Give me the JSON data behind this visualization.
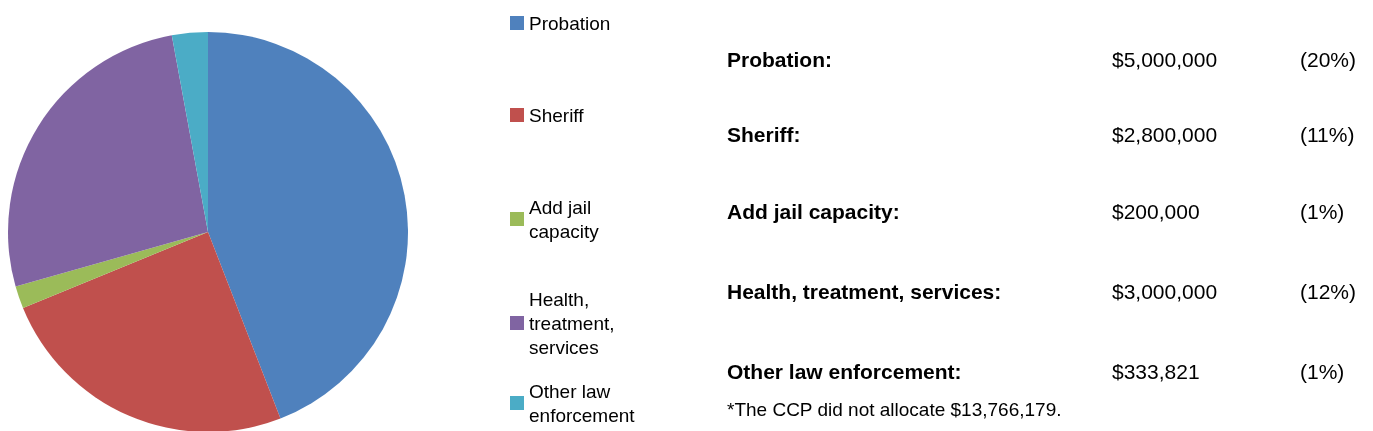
{
  "chart_data": [
    {
      "type": "pie",
      "categories": [
        "Probation",
        "Sheriff",
        "Add jail capacity",
        "Health, treatment, services",
        "Other law enforcement"
      ],
      "values": [
        44.1,
        24.7,
        1.8,
        26.5,
        2.9
      ],
      "colors": [
        "#4f81bd",
        "#c0504d",
        "#9bbb59",
        "#8064a2",
        "#4bacc6"
      ],
      "legend": "right"
    },
    {
      "type": "other",
      "annotations": [
        "Probation:",
        "$5,000,000",
        "(20%)",
        "Sheriff:",
        "$2,800,000",
        "(11%)",
        "Add jail capacity:",
        "$200,000",
        "(1%)",
        "Health, treatment, services:",
        "$3,000,000",
        "(12%)",
        "Other law enforcement:",
        "$333,821",
        "(1%)",
        "*The CCP did not allocate $13,766,179."
      ]
    }
  ]
}
